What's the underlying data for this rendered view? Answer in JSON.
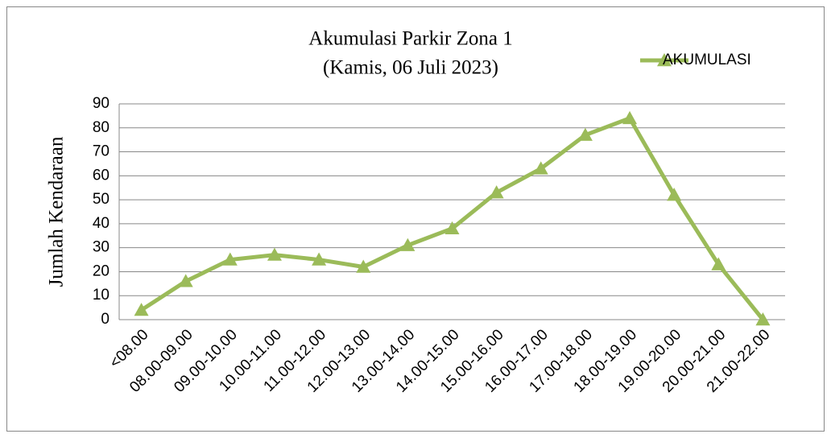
{
  "chart_data": {
    "type": "line",
    "title": "Akumulasi Parkir Zona 1",
    "subtitle": "(Kamis, 06 Juli 2023)",
    "y_label": "Jumlah Kendaraan",
    "categories": [
      "<08.00",
      "08.00-09.00",
      "09.00-10.00",
      "10.00-11.00",
      "11.00-12.00",
      "12.00-13.00",
      "13.00-14.00",
      "14.00-15.00",
      "15.00-16.00",
      "16.00-17.00",
      "17.00-18.00",
      "18.00-19.00",
      "19.00-20.00",
      "20.00-21.00",
      "21.00-22.00"
    ],
    "series": [
      {
        "name": "AKUMULASI",
        "color": "#9bbb59",
        "values": [
          4,
          16,
          25,
          27,
          25,
          22,
          31,
          38,
          53,
          63,
          77,
          84,
          52,
          23,
          0
        ]
      }
    ],
    "ylim": [
      0,
      90
    ],
    "yticks": [
      0,
      10,
      20,
      30,
      40,
      50,
      60,
      70,
      80,
      90
    ],
    "grid": true,
    "legend": "top-right"
  }
}
